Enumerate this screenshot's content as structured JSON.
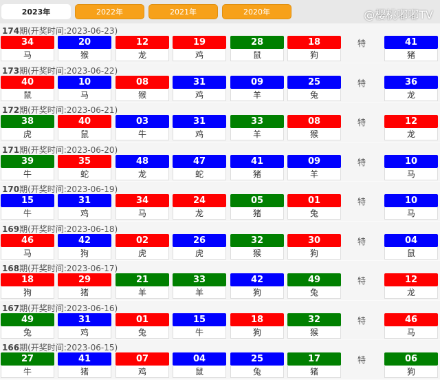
{
  "tabs": [
    "2023年",
    "2022年",
    "2021年",
    "2020年"
  ],
  "active_tab": 0,
  "title_prefix": "期(开奖时间:",
  "special_label": "特",
  "colors": {
    "r": "#ff0000",
    "b": "#0000ff",
    "g": "#008000"
  },
  "draws": [
    {
      "issue": "174",
      "date": "2023-06-23",
      "balls": [
        [
          "34",
          "r",
          "马"
        ],
        [
          "20",
          "b",
          "猴"
        ],
        [
          "12",
          "r",
          "龙"
        ],
        [
          "19",
          "r",
          "鸡"
        ],
        [
          "28",
          "g",
          "鼠"
        ],
        [
          "18",
          "r",
          "狗"
        ]
      ],
      "special": [
        "41",
        "b",
        "猪"
      ]
    },
    {
      "issue": "173",
      "date": "2023-06-22",
      "balls": [
        [
          "40",
          "r",
          "鼠"
        ],
        [
          "10",
          "b",
          "马"
        ],
        [
          "08",
          "r",
          "猴"
        ],
        [
          "31",
          "b",
          "鸡"
        ],
        [
          "09",
          "b",
          "羊"
        ],
        [
          "25",
          "b",
          "兔"
        ]
      ],
      "special": [
        "36",
        "b",
        "龙"
      ]
    },
    {
      "issue": "172",
      "date": "2023-06-21",
      "balls": [
        [
          "38",
          "g",
          "虎"
        ],
        [
          "40",
          "r",
          "鼠"
        ],
        [
          "03",
          "b",
          "牛"
        ],
        [
          "31",
          "b",
          "鸡"
        ],
        [
          "33",
          "g",
          "羊"
        ],
        [
          "08",
          "r",
          "猴"
        ]
      ],
      "special": [
        "12",
        "r",
        "龙"
      ]
    },
    {
      "issue": "171",
      "date": "2023-06-20",
      "balls": [
        [
          "39",
          "g",
          "牛"
        ],
        [
          "35",
          "r",
          "蛇"
        ],
        [
          "48",
          "b",
          "龙"
        ],
        [
          "47",
          "b",
          "蛇"
        ],
        [
          "41",
          "b",
          "猪"
        ],
        [
          "09",
          "b",
          "羊"
        ]
      ],
      "special": [
        "10",
        "b",
        "马"
      ]
    },
    {
      "issue": "170",
      "date": "2023-06-19",
      "balls": [
        [
          "15",
          "b",
          "牛"
        ],
        [
          "31",
          "b",
          "鸡"
        ],
        [
          "34",
          "r",
          "马"
        ],
        [
          "24",
          "r",
          "龙"
        ],
        [
          "05",
          "g",
          "猪"
        ],
        [
          "01",
          "r",
          "兔"
        ]
      ],
      "special": [
        "10",
        "b",
        "马"
      ]
    },
    {
      "issue": "169",
      "date": "2023-06-18",
      "balls": [
        [
          "46",
          "r",
          "马"
        ],
        [
          "42",
          "b",
          "狗"
        ],
        [
          "02",
          "r",
          "虎"
        ],
        [
          "26",
          "b",
          "虎"
        ],
        [
          "32",
          "g",
          "猴"
        ],
        [
          "30",
          "r",
          "狗"
        ]
      ],
      "special": [
        "04",
        "b",
        "鼠"
      ]
    },
    {
      "issue": "168",
      "date": "2023-06-17",
      "balls": [
        [
          "18",
          "r",
          "狗"
        ],
        [
          "29",
          "r",
          "猪"
        ],
        [
          "21",
          "g",
          "羊"
        ],
        [
          "33",
          "g",
          "羊"
        ],
        [
          "42",
          "b",
          "狗"
        ],
        [
          "49",
          "g",
          "兔"
        ]
      ],
      "special": [
        "12",
        "r",
        "龙"
      ]
    },
    {
      "issue": "167",
      "date": "2023-06-16",
      "balls": [
        [
          "49",
          "g",
          "兔"
        ],
        [
          "31",
          "b",
          "鸡"
        ],
        [
          "01",
          "r",
          "兔"
        ],
        [
          "15",
          "b",
          "牛"
        ],
        [
          "18",
          "r",
          "狗"
        ],
        [
          "32",
          "g",
          "猴"
        ]
      ],
      "special": [
        "46",
        "r",
        "马"
      ]
    },
    {
      "issue": "166",
      "date": "2023-06-15",
      "balls": [
        [
          "27",
          "g",
          "牛"
        ],
        [
          "41",
          "b",
          "猪"
        ],
        [
          "07",
          "r",
          "鸡"
        ],
        [
          "04",
          "b",
          "鼠"
        ],
        [
          "25",
          "b",
          "兔"
        ],
        [
          "17",
          "g",
          "猪"
        ]
      ],
      "special": [
        "06",
        "g",
        "狗"
      ]
    }
  ],
  "watermark": "@樱桃嘟嘟TV"
}
